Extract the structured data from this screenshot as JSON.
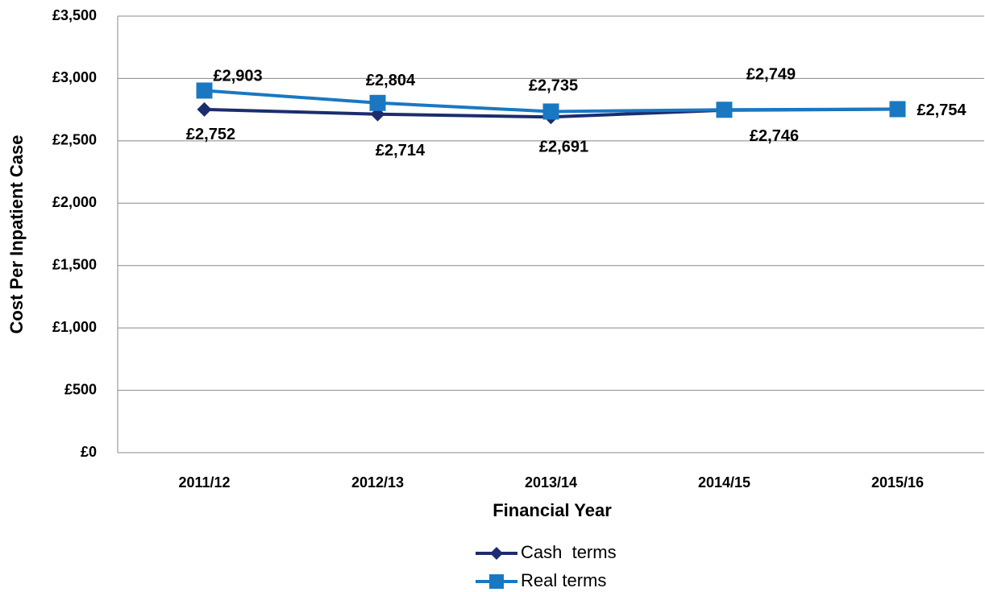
{
  "chart_data": {
    "type": "line",
    "x_label": "Financial Year",
    "y_label": "Cost Per Inpatient Case",
    "categories": [
      "2011/12",
      "2012/13",
      "2013/14",
      "2014/15",
      "2015/16"
    ],
    "series": [
      {
        "name": "Cash  terms",
        "color": "#1c2d6e",
        "marker": "diamond",
        "values": [
          2752,
          2714,
          2691,
          2746,
          2754
        ],
        "value_labels": [
          "£2,752",
          "£2,714",
          "£2,691",
          "£2,746",
          null
        ]
      },
      {
        "name": "Real terms",
        "color": "#1a78c2",
        "marker": "square",
        "values": [
          2903,
          2804,
          2735,
          2749,
          2754
        ],
        "value_labels": [
          "£2,903",
          "£2,804",
          "£2,735",
          "£2,749",
          "£2,754"
        ]
      }
    ],
    "ylim": [
      0,
      3500
    ],
    "yticks": [
      {
        "value": 0,
        "label": "£0"
      },
      {
        "value": 500,
        "label": "£500"
      },
      {
        "value": 1000,
        "label": "£1,000"
      },
      {
        "value": 1500,
        "label": "£1,500"
      },
      {
        "value": 2000,
        "label": "£2,000"
      },
      {
        "value": 2500,
        "label": "£2,500"
      },
      {
        "value": 3000,
        "label": "£3,000"
      },
      {
        "value": 3500,
        "label": "£3,500"
      }
    ],
    "grid": true,
    "legend": "bottom"
  }
}
